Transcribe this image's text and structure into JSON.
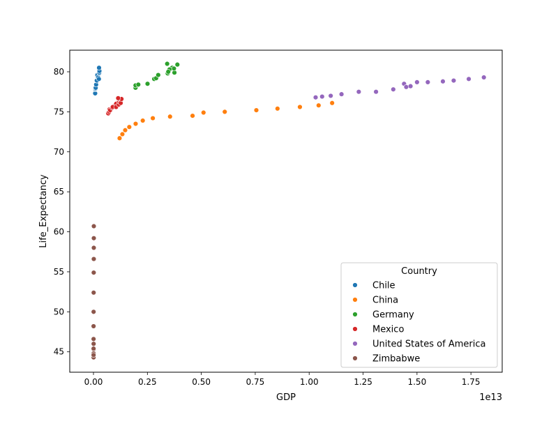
{
  "chart_data": {
    "type": "scatter",
    "xlabel": "GDP",
    "ylabel": "Life_Expectancy",
    "x_offset_label": "1e13",
    "xlim": [
      -0.11,
      1.895
    ],
    "ylim": [
      42.45,
      82.7
    ],
    "x_ticks": [
      0.0,
      0.25,
      0.5,
      0.75,
      1.0,
      1.25,
      1.5,
      1.75
    ],
    "x_tick_labels": [
      "0.00",
      "0.25",
      "0.50",
      "0.75",
      "1.00",
      "1.25",
      "1.50",
      "1.75"
    ],
    "y_ticks": [
      45,
      50,
      55,
      60,
      65,
      70,
      75,
      80
    ],
    "y_tick_labels": [
      "45",
      "50",
      "55",
      "60",
      "65",
      "70",
      "75",
      "80"
    ],
    "grid": false,
    "legend": {
      "title": "Country",
      "position": "lower-right"
    },
    "series": [
      {
        "name": "Chile",
        "color": "#1f77b4",
        "points": [
          [
            0.0069,
            77.3
          ],
          [
            0.0078,
            77.3
          ],
          [
            0.0085,
            77.8
          ],
          [
            0.0099,
            77.9
          ],
          [
            0.0102,
            78.0
          ],
          [
            0.0123,
            78.4
          ],
          [
            0.0138,
            78.9
          ],
          [
            0.0158,
            78.9
          ],
          [
            0.0173,
            79.5
          ],
          [
            0.0181,
            79.6
          ],
          [
            0.0218,
            79.3
          ],
          [
            0.025,
            79.1
          ],
          [
            0.0265,
            79.8
          ],
          [
            0.0267,
            79.9
          ],
          [
            0.0276,
            80.1
          ],
          [
            0.0258,
            80.5
          ]
        ]
      },
      {
        "name": "China",
        "color": "#ff7f0e",
        "points": [
          [
            0.1211,
            71.7
          ],
          [
            0.1339,
            72.2
          ],
          [
            0.1471,
            72.7
          ],
          [
            0.166,
            73.1
          ],
          [
            0.1955,
            73.5
          ],
          [
            0.2286,
            73.9
          ],
          [
            0.2752,
            74.2
          ],
          [
            0.355,
            74.4
          ],
          [
            0.4594,
            74.5
          ],
          [
            0.5102,
            74.9
          ],
          [
            0.6087,
            75.0
          ],
          [
            0.7551,
            75.2
          ],
          [
            0.8532,
            75.4
          ],
          [
            0.957,
            75.6
          ],
          [
            1.0439,
            75.8
          ],
          [
            1.1065,
            76.1
          ]
        ]
      },
      {
        "name": "Germany",
        "color": "#2ca02c",
        "points": [
          [
            0.195,
            78.0
          ],
          [
            0.195,
            78.3
          ],
          [
            0.2079,
            78.4
          ],
          [
            0.2506,
            78.5
          ],
          [
            0.2815,
            79.1
          ],
          [
            0.2906,
            79.2
          ],
          [
            0.3002,
            79.6
          ],
          [
            0.3439,
            79.8
          ],
          [
            0.3476,
            80.1
          ],
          [
            0.3753,
            79.9
          ],
          [
            0.3417,
            81.0
          ],
          [
            0.3645,
            80.5
          ],
          [
            0.3731,
            80.4
          ],
          [
            0.389,
            80.9
          ],
          [
            0.3526,
            80.3
          ],
          [
            0.3468,
            80.0
          ]
        ]
      },
      {
        "name": "Mexico",
        "color": "#d62728",
        "points": [
          [
            0.0684,
            74.8
          ],
          [
            0.0725,
            75.0
          ],
          [
            0.0742,
            75.3
          ],
          [
            0.0772,
            75.2
          ],
          [
            0.0866,
            75.5
          ],
          [
            0.0965,
            75.7
          ],
          [
            0.1043,
            75.8
          ],
          [
            0.1051,
            76.0
          ],
          [
            0.0895,
            75.6
          ],
          [
            0.1051,
            75.6
          ],
          [
            0.1171,
            75.9
          ],
          [
            0.1186,
            76.3
          ],
          [
            0.1186,
            76.6
          ],
          [
            0.1262,
            76.1
          ],
          [
            0.1298,
            76.6
          ],
          [
            0.1144,
            76.7
          ]
        ]
      },
      {
        "name": "United States of America",
        "color": "#9467bd",
        "points": [
          [
            1.03,
            76.8
          ],
          [
            1.06,
            76.9
          ],
          [
            1.1,
            77.0
          ],
          [
            1.15,
            77.2
          ],
          [
            1.23,
            77.5
          ],
          [
            1.31,
            77.5
          ],
          [
            1.39,
            77.8
          ],
          [
            1.44,
            78.5
          ],
          [
            1.45,
            78.1
          ],
          [
            1.47,
            78.2
          ],
          [
            1.5,
            78.7
          ],
          [
            1.55,
            78.7
          ],
          [
            1.62,
            78.8
          ],
          [
            1.67,
            78.9
          ],
          [
            1.74,
            79.1
          ],
          [
            1.81,
            79.3
          ]
        ]
      },
      {
        "name": "Zimbabwe",
        "color": "#8c564b",
        "points": [
          [
            0.0007,
            46.0
          ],
          [
            0.0007,
            45.3
          ],
          [
            0.0006,
            44.8
          ],
          [
            0.0006,
            44.5
          ],
          [
            0.0005,
            44.3
          ],
          [
            0.0004,
            44.6
          ],
          [
            0.0004,
            45.4
          ],
          [
            0.0004,
            46.6
          ],
          [
            0.0004,
            48.2
          ],
          [
            0.0006,
            50.0
          ],
          [
            0.0008,
            52.4
          ],
          [
            0.0011,
            54.9
          ],
          [
            0.0014,
            56.6
          ],
          [
            0.0015,
            58.0
          ],
          [
            0.0016,
            59.2
          ],
          [
            0.0016,
            60.7
          ]
        ]
      }
    ]
  }
}
